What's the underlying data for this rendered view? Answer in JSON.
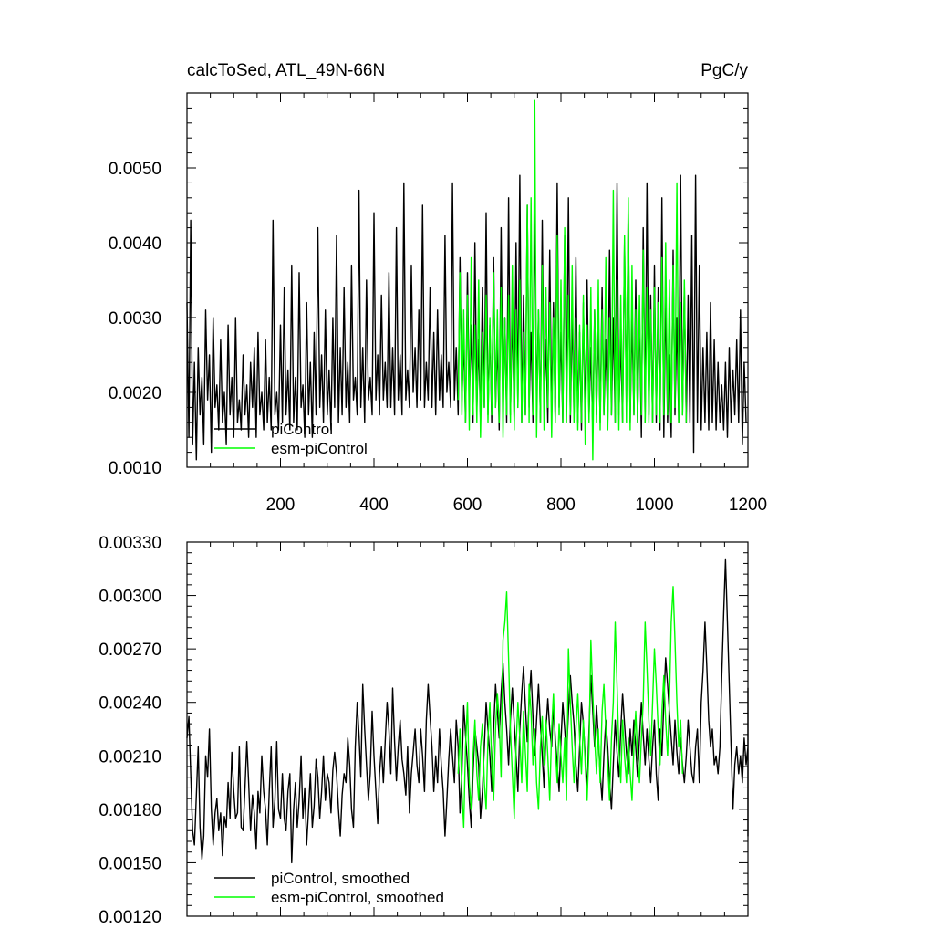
{
  "colors": {
    "piControl": "#000000",
    "esm-piControl": "#00ff00",
    "frame": "#000000",
    "background": "#ffffff"
  },
  "chart_data": [
    {
      "type": "line",
      "title_left": "calcToSed, ATL_49N-66N",
      "title_right": "PgC/y",
      "xlim": [
        0,
        1200
      ],
      "ylim": [
        0.001,
        0.006
      ],
      "xticks": [
        200,
        400,
        600,
        800,
        1000,
        1200
      ],
      "xtick_labels": [
        "200",
        "400",
        "600",
        "800",
        "1000",
        "1200"
      ],
      "yticks": [
        0.001,
        0.002,
        0.003,
        0.004,
        0.005
      ],
      "ytick_labels": [
        "0.0010",
        "0.0020",
        "0.0030",
        "0.0040",
        "0.0050"
      ],
      "legend_position": "bottom-left",
      "series": [
        {
          "name": "piControl",
          "color": "#000000",
          "x_start": 0,
          "x_step": 4,
          "values": [
            0.0032,
            0.0014,
            0.0043,
            0.0013,
            0.0024,
            0.0011,
            0.0026,
            0.0017,
            0.0022,
            0.0013,
            0.0031,
            0.0019,
            0.0025,
            0.0012,
            0.003,
            0.0018,
            0.0021,
            0.0015,
            0.0027,
            0.0016,
            0.002,
            0.0013,
            0.0029,
            0.0017,
            0.0022,
            0.0014,
            0.003,
            0.0016,
            0.0019,
            0.0015,
            0.0025,
            0.0017,
            0.0021,
            0.0014,
            0.0024,
            0.0018,
            0.0026,
            0.0014,
            0.0028,
            0.0017,
            0.002,
            0.0015,
            0.0027,
            0.0016,
            0.0022,
            0.0015,
            0.0043,
            0.0017,
            0.002,
            0.0015,
            0.0029,
            0.0016,
            0.0034,
            0.0017,
            0.0023,
            0.0015,
            0.0037,
            0.0016,
            0.0022,
            0.0015,
            0.0036,
            0.0018,
            0.0021,
            0.0014,
            0.0032,
            0.0017,
            0.0024,
            0.0014,
            0.0028,
            0.0017,
            0.0042,
            0.0018,
            0.0025,
            0.0016,
            0.0031,
            0.0017,
            0.0023,
            0.0015,
            0.003,
            0.0018,
            0.0041,
            0.0016,
            0.0026,
            0.0017,
            0.0034,
            0.0018,
            0.0024,
            0.0016,
            0.0037,
            0.0019,
            0.0022,
            0.0017,
            0.0047,
            0.0018,
            0.0026,
            0.0016,
            0.0035,
            0.0019,
            0.0022,
            0.0017,
            0.0044,
            0.0019,
            0.0025,
            0.0017,
            0.0033,
            0.0019,
            0.0024,
            0.0018,
            0.0036,
            0.0018,
            0.0026,
            0.0017,
            0.0042,
            0.0019,
            0.0025,
            0.0017,
            0.0048,
            0.0019,
            0.0023,
            0.0018,
            0.0037,
            0.002,
            0.0026,
            0.0018,
            0.0031,
            0.0019,
            0.0045,
            0.0018,
            0.0024,
            0.0019,
            0.0034,
            0.0018,
            0.0028,
            0.0017,
            0.0031,
            0.0019,
            0.0025,
            0.0018,
            0.0041,
            0.002,
            0.0024,
            0.0018,
            0.0048,
            0.0019,
            0.0026,
            0.0017,
            0.0038,
            0.0019,
            0.0027,
            0.0016,
            0.0036,
            0.0019,
            0.0029,
            0.0016,
            0.004,
            0.0018,
            0.0027,
            0.0016,
            0.0034,
            0.0018,
            0.0044,
            0.0017,
            0.0029,
            0.0016,
            0.0038,
            0.0018,
            0.0027,
            0.0015,
            0.0042,
            0.0018,
            0.003,
            0.0016,
            0.0046,
            0.0017,
            0.0031,
            0.0016,
            0.004,
            0.0018,
            0.0049,
            0.0016,
            0.0033,
            0.0017,
            0.0045,
            0.0018,
            0.0028,
            0.0016,
            0.0047,
            0.0018,
            0.0031,
            0.0016,
            0.0043,
            0.0018,
            0.0027,
            0.0016,
            0.0039,
            0.0017,
            0.0032,
            0.0016,
            0.0048,
            0.0018,
            0.0028,
            0.0016,
            0.0041,
            0.0018,
            0.0046,
            0.0016,
            0.0031,
            0.0017,
            0.0038,
            0.0016,
            0.0028,
            0.0015,
            0.0032,
            0.0016,
            0.0035,
            0.0017,
            0.0026,
            0.0015,
            0.0031,
            0.0017,
            0.0029,
            0.0016,
            0.0034,
            0.0017,
            0.0027,
            0.0016,
            0.0039,
            0.0017,
            0.003,
            0.0016,
            0.0048,
            0.0017,
            0.0027,
            0.0016,
            0.004,
            0.0018,
            0.0044,
            0.0016,
            0.003,
            0.0017,
            0.0035,
            0.0016,
            0.0031,
            0.0014,
            0.0042,
            0.0016,
            0.0048,
            0.0017,
            0.0033,
            0.0016,
            0.0037,
            0.0016,
            0.0034,
            0.0015,
            0.0046,
            0.0014,
            0.0033,
            0.0016,
            0.0025,
            0.0014,
            0.0039,
            0.0017,
            0.003,
            0.0016,
            0.0049,
            0.0017,
            0.0034,
            0.0016,
            0.0033,
            0.0016,
            0.0041,
            0.0012,
            0.0049,
            0.0016,
            0.0037,
            0.0015,
            0.0026,
            0.0016,
            0.0028,
            0.0015,
            0.0032,
            0.0016,
            0.0027,
            0.0015,
            0.0024,
            0.0016,
            0.0021,
            0.0015,
            0.0024,
            0.0014,
            0.0026,
            0.0016,
            0.0023,
            0.0017,
            0.0027,
            0.0016,
            0.0031,
            0.0013,
            0.0024,
            0.0016
          ]
        },
        {
          "name": "esm-piControl",
          "color": "#00ff00",
          "x_start": 580,
          "x_step": 4,
          "values": [
            0.0019,
            0.0036,
            0.0017,
            0.0031,
            0.0016,
            0.0033,
            0.0015,
            0.0038,
            0.0017,
            0.0029,
            0.0016,
            0.0035,
            0.0014,
            0.0028,
            0.0018,
            0.0033,
            0.0016,
            0.003,
            0.0017,
            0.0036,
            0.0018,
            0.0031,
            0.0016,
            0.0034,
            0.0014,
            0.003,
            0.0017,
            0.0033,
            0.0016,
            0.0037,
            0.0015,
            0.0031,
            0.0018,
            0.0035,
            0.0016,
            0.0028,
            0.0017,
            0.0045,
            0.0016,
            0.0046,
            0.0017,
            0.0059,
            0.0014,
            0.0031,
            0.0016,
            0.0037,
            0.0015,
            0.0034,
            0.0018,
            0.0032,
            0.0014,
            0.003,
            0.0016,
            0.0041,
            0.0017,
            0.0035,
            0.0016,
            0.0042,
            0.0016,
            0.0033,
            0.0017,
            0.0037,
            0.0016,
            0.003,
            0.0015,
            0.0029,
            0.0016,
            0.0033,
            0.0013,
            0.0029,
            0.0016,
            0.0034,
            0.0011,
            0.0031,
            0.0016,
            0.0035,
            0.0015,
            0.0031,
            0.0017,
            0.0038,
            0.0015,
            0.003,
            0.0017,
            0.0047,
            0.0016,
            0.0035,
            0.0015,
            0.0033,
            0.0016,
            0.0041,
            0.0016,
            0.0046,
            0.0015,
            0.0037,
            0.0017,
            0.0031,
            0.0016,
            0.0033,
            0.0017,
            0.0039,
            0.0016,
            0.0034,
            0.0016,
            0.0031,
            0.0016,
            0.0034,
            0.0017,
            0.0032,
            0.0016,
            0.0038,
            0.0017,
            0.004,
            0.0017,
            0.0035,
            0.0016,
            0.0037,
            0.0018,
            0.0048,
            0.0016,
            0.0032,
            0.0017,
            0.0035,
            0.0016
          ]
        }
      ]
    },
    {
      "type": "line",
      "xlim": [
        0,
        1200
      ],
      "ylim": [
        0.0012,
        0.0033
      ],
      "xticks": [
        200,
        400,
        600,
        800,
        1000,
        1200
      ],
      "yticks": [
        0.0012,
        0.0015,
        0.0018,
        0.0021,
        0.0024,
        0.0027,
        0.003,
        0.0033
      ],
      "ytick_labels": [
        "0.00120",
        "0.00150",
        "0.00180",
        "0.00210",
        "0.00240",
        "0.00270",
        "0.00300",
        "0.00330"
      ],
      "legend_position": "bottom-left",
      "series": [
        {
          "name": "piControl, smoothed",
          "color": "#000000",
          "x_start": 0,
          "x_step": 4,
          "values": [
            0.0022,
            0.00232,
            0.002,
            0.00168,
            0.0016,
            0.00188,
            0.00215,
            0.0017,
            0.00152,
            0.00165,
            0.0021,
            0.00198,
            0.00225,
            0.0018,
            0.0016,
            0.00178,
            0.00186,
            0.00168,
            0.00178,
            0.00154,
            0.00176,
            0.0017,
            0.00195,
            0.00175,
            0.00212,
            0.0019,
            0.00175,
            0.00178,
            0.00215,
            0.0017,
            0.00168,
            0.00192,
            0.00218,
            0.00195,
            0.00168,
            0.00188,
            0.00178,
            0.00158,
            0.0019,
            0.00178,
            0.0021,
            0.0019,
            0.0018,
            0.0016,
            0.0019,
            0.00215,
            0.0017,
            0.00185,
            0.00218,
            0.0018,
            0.00175,
            0.002,
            0.00175,
            0.00168,
            0.0019,
            0.002,
            0.0015,
            0.0018,
            0.00195,
            0.0017,
            0.00185,
            0.0021,
            0.00175,
            0.00192,
            0.0016,
            0.0018,
            0.002,
            0.0017,
            0.00182,
            0.00208,
            0.00198,
            0.00175,
            0.0019,
            0.0021,
            0.00185,
            0.002,
            0.00195,
            0.00178,
            0.00202,
            0.00212,
            0.002,
            0.0018,
            0.00165,
            0.00188,
            0.002,
            0.00195,
            0.0022,
            0.00205,
            0.0018,
            0.0017,
            0.00215,
            0.0024,
            0.00222,
            0.00198,
            0.0025,
            0.00225,
            0.00205,
            0.00185,
            0.002,
            0.00235,
            0.0021,
            0.0019,
            0.00172,
            0.002,
            0.00215,
            0.00195,
            0.00218,
            0.0024,
            0.00225,
            0.002,
            0.00248,
            0.00218,
            0.00196,
            0.00215,
            0.0023,
            0.00208,
            0.002,
            0.00188,
            0.00215,
            0.00178,
            0.002,
            0.00212,
            0.00225,
            0.00205,
            0.00195,
            0.00225,
            0.0021,
            0.0019,
            0.0023,
            0.0025,
            0.00232,
            0.00215,
            0.0019,
            0.0021,
            0.00195,
            0.00225,
            0.00205,
            0.0019,
            0.00165,
            0.00185,
            0.00208,
            0.00225,
            0.0021,
            0.00195,
            0.0023,
            0.00215,
            0.00178,
            0.002,
            0.00238,
            0.00222,
            0.00205,
            0.00185,
            0.0017,
            0.002,
            0.00225,
            0.00215,
            0.00205,
            0.00175,
            0.0019,
            0.00215,
            0.0024,
            0.00225,
            0.0021,
            0.0019,
            0.00225,
            0.0025,
            0.00235,
            0.0022,
            0.00245,
            0.00262,
            0.0024,
            0.00225,
            0.00205,
            0.0023,
            0.00248,
            0.00228,
            0.0021,
            0.0019,
            0.00225,
            0.00245,
            0.0026,
            0.00238,
            0.00218,
            0.0024,
            0.00258,
            0.00232,
            0.0021,
            0.0023,
            0.0025,
            0.00228,
            0.0021,
            0.00192,
            0.00225,
            0.00242,
            0.00225,
            0.00215,
            0.00238,
            0.0022,
            0.00205,
            0.0019,
            0.00218,
            0.0024,
            0.00225,
            0.0021,
            0.00235,
            0.00255,
            0.0024,
            0.00228,
            0.00205,
            0.0019,
            0.00215,
            0.0024,
            0.00228,
            0.0021,
            0.0019,
            0.00225,
            0.00255,
            0.00235,
            0.00215,
            0.00238,
            0.0022,
            0.002,
            0.00185,
            0.0021,
            0.0023,
            0.00215,
            0.00195,
            0.0018,
            0.00205,
            0.0023,
            0.00212,
            0.00198,
            0.00225,
            0.00245,
            0.00228,
            0.00212,
            0.002,
            0.00225,
            0.0021,
            0.0023,
            0.00215,
            0.00198,
            0.0022,
            0.0024,
            0.00222,
            0.00205,
            0.00225,
            0.00208,
            0.00195,
            0.00215,
            0.0023,
            0.002,
            0.00185,
            0.00225,
            0.0021,
            0.0024,
            0.00265,
            0.0025,
            0.00235,
            0.0022,
            0.00205,
            0.0023,
            0.00212,
            0.002,
            0.0022,
            0.00205,
            0.00195,
            0.0021,
            0.0023,
            0.00215,
            0.002,
            0.00195,
            0.00215,
            0.00225,
            0.00195,
            0.0024,
            0.00258,
            0.00285,
            0.0026,
            0.0023,
            0.00215,
            0.00225,
            0.00205,
            0.0021,
            0.002,
            0.00215,
            0.00255,
            0.0029,
            0.0032,
            0.00285,
            0.0025,
            0.00215,
            0.0018,
            0.00205,
            0.00215,
            0.002,
            0.0021,
            0.00195,
            0.0022,
            0.00205,
            0.00215,
            0.002,
            0.0019,
            0.0021,
            0.00225,
            0.0024,
            0.00248,
            0.0023,
            0.00165,
            0.0021
          ]
        },
        {
          "name": "esm-piControl, smoothed",
          "color": "#00ff00",
          "x_start": 580,
          "x_step": 4,
          "values": [
            0.002,
            0.00225,
            0.0019,
            0.0017,
            0.00215,
            0.0024,
            0.00195,
            0.0018,
            0.0021,
            0.0023,
            0.002,
            0.00185,
            0.00215,
            0.00228,
            0.00195,
            0.0018,
            0.0022,
            0.0024,
            0.00205,
            0.00185,
            0.00225,
            0.00245,
            0.0023,
            0.00198,
            0.00275,
            0.00285,
            0.00302,
            0.00265,
            0.00225,
            0.002,
            0.00175,
            0.00215,
            0.0024,
            0.0022,
            0.00195,
            0.00235,
            0.00212,
            0.0019,
            0.0025,
            0.00235,
            0.00205,
            0.00225,
            0.00195,
            0.0018,
            0.00215,
            0.00232,
            0.00205,
            0.0023,
            0.0021,
            0.00185,
            0.00225,
            0.00245,
            0.00215,
            0.00195,
            0.00228,
            0.0021,
            0.00195,
            0.0022,
            0.00185,
            0.0027,
            0.0024,
            0.00215,
            0.00195,
            0.00225,
            0.00245,
            0.0022,
            0.002,
            0.0023,
            0.00205,
            0.00185,
            0.00215,
            0.00275,
            0.00245,
            0.0022,
            0.002,
            0.00225,
            0.00195,
            0.00235,
            0.0025,
            0.00225,
            0.00205,
            0.00185,
            0.0022,
            0.0024,
            0.00285,
            0.0025,
            0.00215,
            0.00195,
            0.0023,
            0.0021,
            0.00195,
            0.0022,
            0.002,
            0.00185,
            0.00215,
            0.00235,
            0.0021,
            0.00195,
            0.0022,
            0.0024,
            0.00285,
            0.0026,
            0.0023,
            0.0021,
            0.0024,
            0.0027,
            0.0025,
            0.00225,
            0.00205,
            0.00235,
            0.00255,
            0.0023,
            0.0021,
            0.0024,
            0.00285,
            0.00305,
            0.00275,
            0.0024,
            0.00215,
            0.0023,
            0.002
          ]
        }
      ]
    }
  ]
}
